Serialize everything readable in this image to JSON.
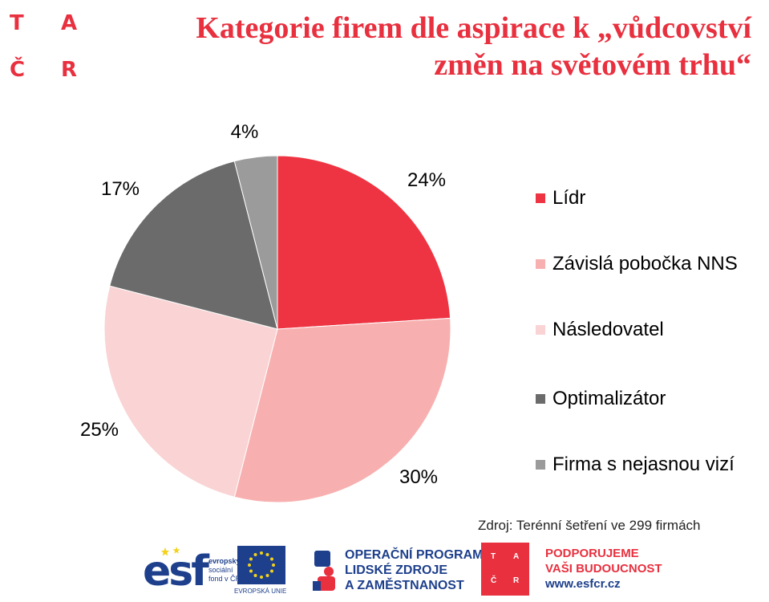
{
  "header": {
    "logo_letters": [
      "T",
      "A",
      "Č",
      "R"
    ],
    "title_line1": "Kategorie firem dle aspirace k „vůdcovství",
    "title_line2": "změn na světovém trhu“"
  },
  "chart_data": {
    "type": "pie",
    "title": "Kategorie firem dle aspirace k „vůdcovství změn na světovém trhu“",
    "categories": [
      "Lídr",
      "Závislá pobočka NNS",
      "Následovatel",
      "Optimalizátor",
      "Firma s nejasnou vizí"
    ],
    "values": [
      24,
      30,
      25,
      17,
      4
    ],
    "labels": [
      "24%",
      "30%",
      "25%",
      "17%",
      "4%"
    ],
    "colors": [
      "#ee3442",
      "#f7b0af",
      "#fad3d4",
      "#6b6b6b",
      "#9b9b9b"
    ],
    "start_angle_deg": 0,
    "direction": "clockwise",
    "legend_position": "right"
  },
  "source": "Zdroj: Terénní šetření ve 299 firmách",
  "footer": {
    "esf_mark": "esf",
    "esf_lines": [
      "evropský",
      "sociální",
      "fond v ČR"
    ],
    "eu_caption": "EVROPSKÁ UNIE",
    "op_lines": [
      "OPERAČNÍ PROGRAM",
      "LIDSKÉ ZDROJE",
      "A ZAMĚSTNANOST"
    ],
    "tacr_box": [
      "T",
      "A",
      "Č",
      "R"
    ],
    "support_lines": [
      "PODPORUJEME",
      "VAŠI BUDOUCNOST"
    ],
    "support_url": "www.esfcr.cz",
    "colors": {
      "red": "#e8303f",
      "blue": "#1d3f8c",
      "yellow": "#f3d21b"
    }
  }
}
